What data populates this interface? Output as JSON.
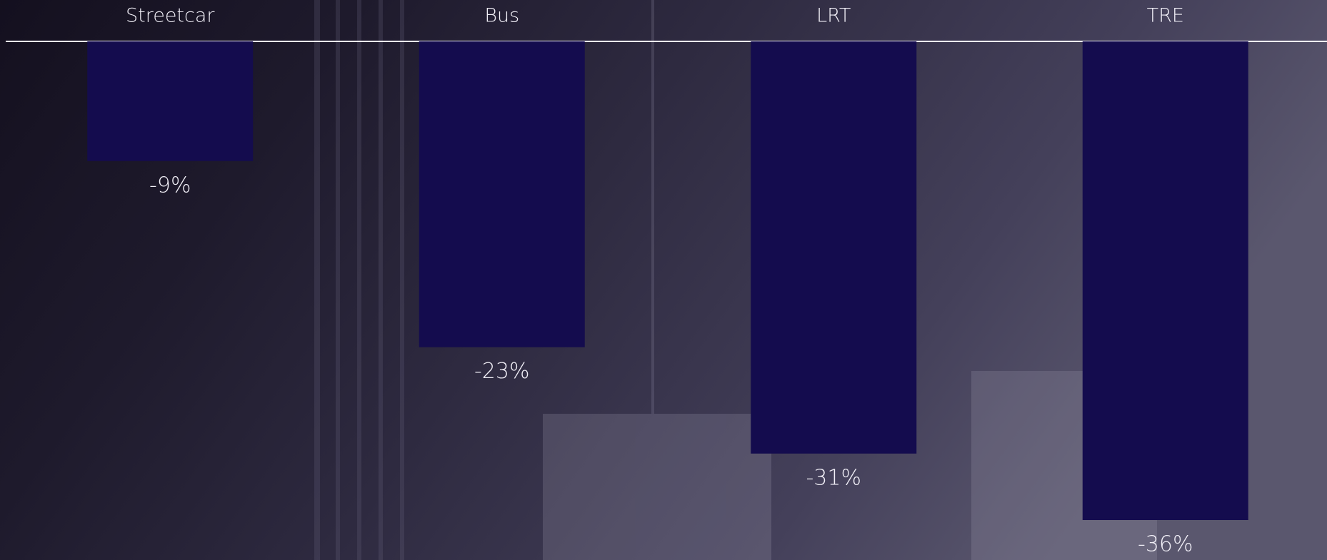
{
  "chart_data": {
    "type": "bar",
    "categories": [
      "Streetcar",
      "Bus",
      "LRT",
      "TRE"
    ],
    "values": [
      -9,
      -23,
      -31,
      -36
    ],
    "value_labels": [
      "-9%",
      "-23%",
      "-31%",
      "-36%"
    ],
    "color": "#140c4e"
  }
}
